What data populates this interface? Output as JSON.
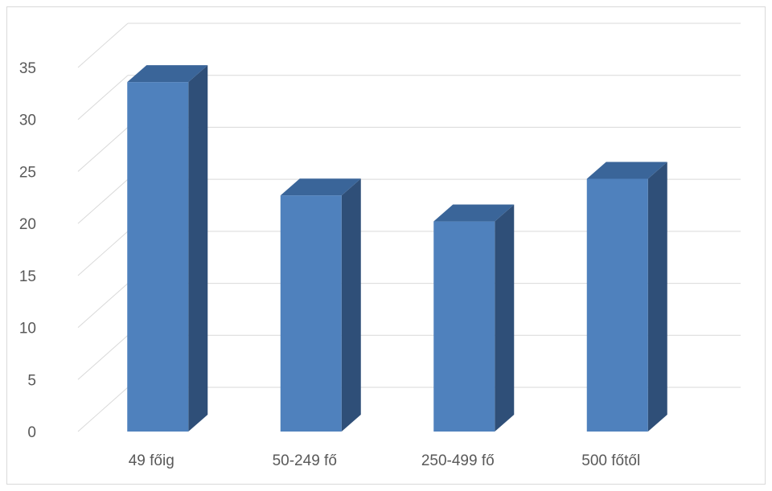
{
  "chart_data": {
    "type": "bar",
    "style": "3d-column",
    "categories": [
      "49 főig",
      "50-249 fő",
      "250-499 fő",
      "500 főtől"
    ],
    "values": [
      33.6,
      22.7,
      20.2,
      24.3
    ],
    "yticks": [
      "0",
      "5",
      "10",
      "15",
      "20",
      "25",
      "30",
      "35"
    ],
    "ylim": [
      0,
      35
    ],
    "grid": true,
    "legend": "none",
    "colors": {
      "front": "#4F81BD",
      "top": "#3A6599",
      "side": "#2F4F78",
      "grid": "#d9d9d9"
    }
  }
}
